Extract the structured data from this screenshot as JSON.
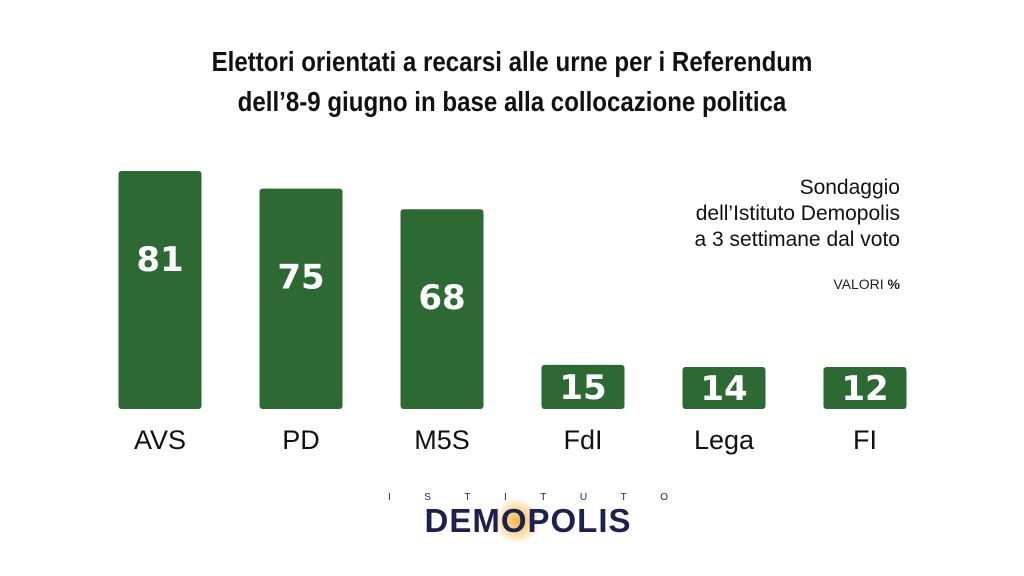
{
  "title": {
    "line1": "Elettori orientati a recarsi alle urne per i Referendum",
    "line2": "dell’8-9 giugno in base alla collocazione politica"
  },
  "note": {
    "line1": "Sondaggio",
    "line2": "dell’Istituto Demopolis",
    "line3": "a 3 settimane dal voto"
  },
  "unit": {
    "label": "VALORI",
    "symbol": "%"
  },
  "logo": {
    "top_text": "ISTITUTO",
    "main_text": "DEMOPOLIS"
  },
  "colors": {
    "bar": "#2d6a33",
    "bar_label": "#ffffff",
    "text": "#111111",
    "logo": "#1d2150"
  },
  "chart_data": {
    "type": "bar",
    "categories": [
      "AVS",
      "PD",
      "M5S",
      "FdI",
      "Lega",
      "FI"
    ],
    "values": [
      81,
      75,
      68,
      15,
      14,
      12
    ],
    "ylim": [
      0,
      81
    ],
    "grid": false,
    "axes_visible": false
  }
}
